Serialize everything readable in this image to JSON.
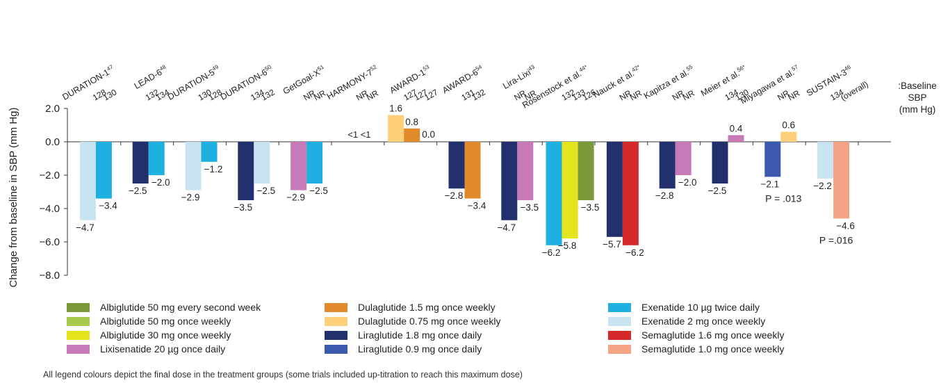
{
  "chart_data": {
    "type": "bar",
    "ylabel": "Change from baseline in SBP (mm Hg)",
    "ylim": [
      -8.0,
      2.0
    ],
    "yticks": [
      "2.0",
      "0.0",
      "−2.0",
      "−4.0",
      "−6.0",
      "−8.0"
    ],
    "ytick_values": [
      2,
      0,
      -2,
      -4,
      -6,
      -8
    ],
    "baseline_label": [
      ":Baseline",
      "SBP",
      "(mm Hg)"
    ],
    "series_colors": {
      "albi50_2w": "#7a9a3a",
      "albi50_w": "#a8c84a",
      "albi30_w": "#e4e41c",
      "lixi20": "#c87ab8",
      "dula15": "#e08a2c",
      "dula075": "#ffd07a",
      "lira18": "#22306e",
      "lira09": "#3b5aad",
      "exe10": "#1eb0e0",
      "exe2": "#c8e4f0",
      "sema16": "#d42a2a",
      "sema10": "#f4a384"
    },
    "trials": [
      {
        "name": "DURATION-1",
        "ref": "47",
        "baselines": [
          "128",
          "130"
        ],
        "bars": [
          {
            "series": "exe2",
            "value": -4.7,
            "label": "−4.7"
          },
          {
            "series": "exe10",
            "value": -3.4,
            "label": "−3.4"
          }
        ]
      },
      {
        "name": "LEAD-6",
        "ref": "48",
        "baselines": [
          "132",
          "134"
        ],
        "bars": [
          {
            "series": "lira18",
            "value": -2.5,
            "label": "−2.5"
          },
          {
            "series": "exe10",
            "value": -2.0,
            "label": "−2.0"
          }
        ]
      },
      {
        "name": "DURATION-5",
        "ref": "49",
        "baselines": [
          "130",
          "128"
        ],
        "bars": [
          {
            "series": "exe2",
            "value": -2.9,
            "label": "−2.9"
          },
          {
            "series": "exe10",
            "value": -1.2,
            "label": "−1.2"
          }
        ]
      },
      {
        "name": "DURATION-6",
        "ref": "50",
        "baselines": [
          "134",
          "132"
        ],
        "bars": [
          {
            "series": "lira18",
            "value": -3.5,
            "label": "−3.5"
          },
          {
            "series": "exe2",
            "value": -2.5,
            "label": "−2.5"
          }
        ]
      },
      {
        "name": "GetGoal-X",
        "ref": "51",
        "baselines": [
          "NR",
          "NR"
        ],
        "bars": [
          {
            "series": "lixi20",
            "value": -2.9,
            "label": "−2.9"
          },
          {
            "series": "exe10",
            "value": -2.5,
            "label": "−2.5"
          }
        ]
      },
      {
        "name": "HARMONY-7",
        "ref": "52",
        "baselines": [
          "NR",
          "NR"
        ],
        "bars": [],
        "note": "<1  <1"
      },
      {
        "name": "AWARD-1",
        "ref": "53",
        "baselines": [
          "127",
          "127",
          "127"
        ],
        "bars": [
          {
            "series": "dula075",
            "value": 1.6,
            "label": "1.6"
          },
          {
            "series": "dula15",
            "value": 0.8,
            "label": "0.8"
          },
          {
            "series": "exe10",
            "value": 0.0,
            "label": "0.0"
          }
        ]
      },
      {
        "name": "AWARD-6",
        "ref": "54",
        "baselines": [
          "131",
          "132"
        ],
        "bars": [
          {
            "series": "lira18",
            "value": -2.8,
            "label": "−2.8"
          },
          {
            "series": "dula15",
            "value": -3.4,
            "label": "−3.4"
          }
        ]
      },
      {
        "name": "Lira-Lixi",
        "ref": "43",
        "baselines": [
          "NR",
          "NR"
        ],
        "bars": [
          {
            "series": "lira18",
            "value": -4.7,
            "label": "−4.7"
          },
          {
            "series": "lixi20",
            "value": -3.5,
            "label": "−3.5"
          }
        ]
      },
      {
        "name": "Rosenstock et al.",
        "ref": "44*",
        "baselines": [
          "132",
          "133",
          "126"
        ],
        "bars": [
          {
            "series": "exe10",
            "value": -6.2,
            "label": "−6.2"
          },
          {
            "series": "albi30_w",
            "value": -5.8,
            "label": "−5.8"
          },
          {
            "series": "albi50_2w",
            "value": -3.5,
            "label": "−3.5"
          }
        ]
      },
      {
        "name": "Nauck et al.",
        "ref": "42*",
        "baselines": [
          "NR",
          "NR"
        ],
        "bars": [
          {
            "series": "lira18",
            "value": -5.7,
            "label": "−5.7"
          },
          {
            "series": "sema16",
            "value": -6.2,
            "label": "−6.2"
          }
        ]
      },
      {
        "name": "Kapitza et al.",
        "ref": "55",
        "baselines": [
          "NR",
          "NR"
        ],
        "bars": [
          {
            "series": "lira18",
            "value": -2.8,
            "label": "−2.8"
          },
          {
            "series": "lixi20",
            "value": -2.0,
            "label": "−2.0"
          }
        ]
      },
      {
        "name": "Meier et al.",
        "ref": "56*",
        "baselines": [
          "134",
          "130"
        ],
        "bars": [
          {
            "series": "lira18",
            "value": -2.5,
            "label": "−2.5"
          },
          {
            "series": "lixi20",
            "value": 0.4,
            "label": "0.4"
          }
        ]
      },
      {
        "name": "Miyagawa et al.",
        "ref": "57",
        "baselines": [
          "NR",
          "NR"
        ],
        "bars": [
          {
            "series": "lira09",
            "value": -2.1,
            "label": "−2.1"
          },
          {
            "series": "dula075",
            "value": 0.6,
            "label": "0.6"
          }
        ],
        "pvalue": "P = .013"
      },
      {
        "name": "SUSTAIN-3",
        "ref": "46",
        "baselines": [
          "134",
          "(overall)"
        ],
        "bars": [
          {
            "series": "exe2",
            "value": -2.2,
            "label": "−2.2"
          },
          {
            "series": "sema10",
            "value": -4.6,
            "label": "−4.6"
          }
        ],
        "pvalue": "P =.016"
      }
    ]
  },
  "legend": [
    {
      "series": "albi50_2w",
      "name": "Albiglutide 50 mg",
      "freq": "every second week"
    },
    {
      "series": "albi50_w",
      "name": "Albiglutide 50 mg",
      "freq": "once weekly"
    },
    {
      "series": "albi30_w",
      "name": "Albiglutide 30 mg",
      "freq": "once weekly"
    },
    {
      "series": "lixi20",
      "name": "Lixisenatide 20 µg",
      "freq": "once daily"
    },
    {
      "series": "dula15",
      "name": "Dulaglutide 1.5 mg",
      "freq": "once weekly"
    },
    {
      "series": "dula075",
      "name": "Dulaglutide 0.75 mg",
      "freq": "once weekly"
    },
    {
      "series": "lira18",
      "name": "Liraglutide 1.8 mg",
      "freq": "once daily"
    },
    {
      "series": "lira09",
      "name": "Liraglutide 0.9 mg",
      "freq": "once daily"
    },
    {
      "series": "exe10",
      "name": "Exenatide 10 µg",
      "freq": "twice daily"
    },
    {
      "series": "exe2",
      "name": "Exenatide 2 mg",
      "freq": "once weekly"
    },
    {
      "series": "sema16",
      "name": "Semaglutide 1.6 mg",
      "freq": "once weekly"
    },
    {
      "series": "sema10",
      "name": "Semaglutide 1.0 mg",
      "freq": "once weekly"
    }
  ],
  "footnote": "All legend colours depict the final dose in the treatment groups (some trials included up-titration to reach this maximum dose)"
}
